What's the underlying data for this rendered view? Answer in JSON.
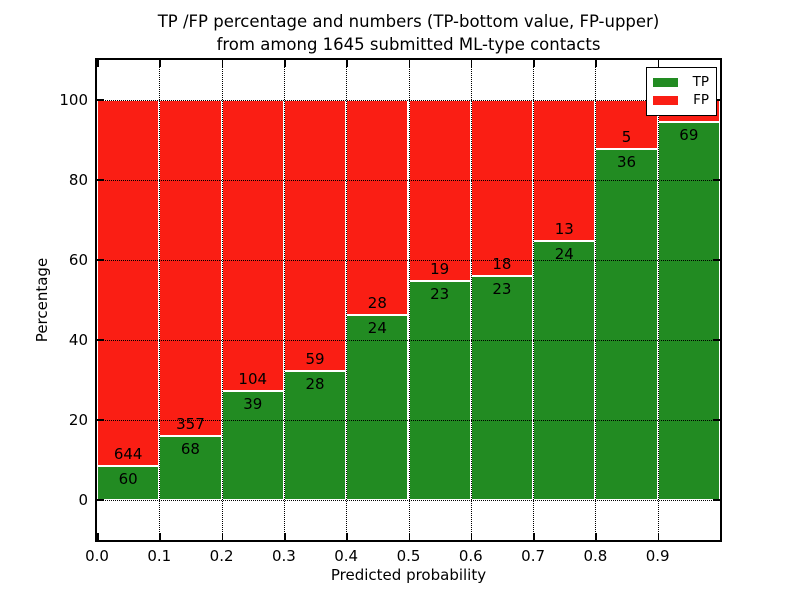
{
  "figure": {
    "title_line1": "TP /FP percentage and numbers (TP-bottom value, FP-upper)",
    "title_line2": "from among 1645 submitted ML-type contacts",
    "xlabel": "Predicted probability",
    "ylabel": "Percentage"
  },
  "legend": {
    "position": "upper-right",
    "items": [
      {
        "label": "TP",
        "color": "#228b22"
      },
      {
        "label": "FP",
        "color": "#fa1e14"
      }
    ]
  },
  "chart_data": {
    "type": "bar",
    "subtype": "stacked_percentage_histogram",
    "title": "TP /FP percentage and numbers (TP-bottom value, FP-upper) from among 1645 submitted ML-type contacts",
    "total_in_title": 1645,
    "xlabel": "Predicted probability",
    "ylabel": "Percentage",
    "xlim": [
      0.0,
      1.0
    ],
    "ylim": [
      -10,
      110
    ],
    "x_tick_labels": [
      "0.0",
      "0.1",
      "0.2",
      "0.3",
      "0.4",
      "0.5",
      "0.6",
      "0.7",
      "0.8",
      "0.9"
    ],
    "y_ticks": [
      0,
      20,
      40,
      60,
      80,
      100
    ],
    "grid": "dotted-black",
    "bar_edge_color": "#ffffff",
    "bin_width": 0.1,
    "bin_starts": [
      0.0,
      0.1,
      0.2,
      0.3,
      0.4,
      0.5,
      0.6,
      0.7,
      0.8,
      0.9
    ],
    "series": [
      {
        "name": "TP",
        "color": "#228b22",
        "counts": [
          60,
          68,
          39,
          28,
          24,
          23,
          23,
          24,
          36,
          69
        ],
        "count_labels_visible": [
          "60",
          "68",
          "39",
          "28",
          "24",
          "23",
          "23",
          "24",
          "36",
          "69"
        ]
      },
      {
        "name": "FP",
        "color": "#fa1e14",
        "counts": [
          644,
          357,
          104,
          59,
          28,
          19,
          18,
          13,
          5,
          null
        ],
        "count_labels_visible": [
          "644",
          "357",
          "104",
          "59",
          "28",
          "19",
          "18",
          "13",
          "5",
          ""
        ],
        "note": "FP count label of last bin is hidden behind the legend"
      }
    ],
    "tp_percent": [
      8.52,
      16.0,
      27.27,
      32.18,
      46.15,
      54.76,
      56.1,
      64.86,
      87.8,
      94.52
    ],
    "stack_top_percent": 100
  }
}
